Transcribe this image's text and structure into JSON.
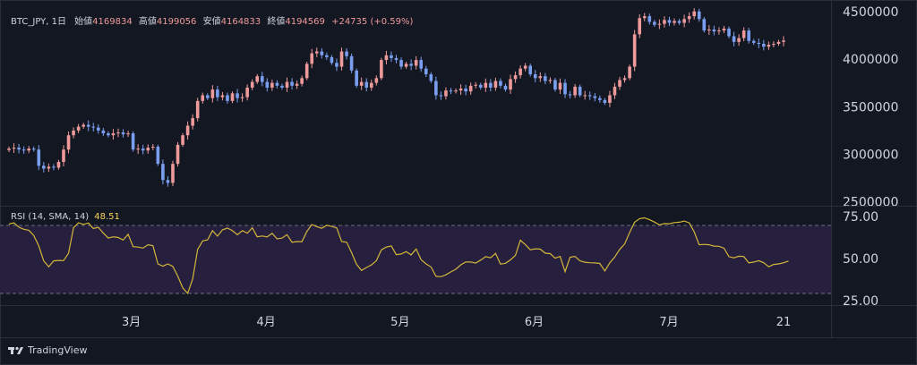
{
  "legend": {
    "symbol": "BTC_JPY, 1日",
    "open_label": "始値",
    "open": "4169834",
    "high_label": "高値",
    "high": "4199056",
    "low_label": "安値",
    "low": "4164833",
    "close_label": "終値",
    "close": "4194569",
    "change": "+24735 (+0.59%)"
  },
  "rsi_legend": {
    "label": "RSI (14, SMA, 14)",
    "value": "48.51"
  },
  "brand": "TradingView",
  "colors": {
    "background": "#131722",
    "up": "#ef9a9a",
    "down": "#7b9ff0",
    "rsi_line": "#d4b63a",
    "rsi_band": "#261f3d"
  },
  "chart_data": [
    {
      "type": "candlestick",
      "title": "BTC_JPY, 1日",
      "y_ticks": [
        "4500000",
        "4000000",
        "3500000",
        "3000000",
        "2500000"
      ],
      "ylim": [
        2460000,
        4620000
      ],
      "x_ticks": [
        "3月",
        "4月",
        "5月",
        "6月",
        "7月",
        "21"
      ],
      "up_color": "#ef9a9a",
      "down_color": "#7b9ff0",
      "closes": [
        3060000,
        3070000,
        3050000,
        3040000,
        3060000,
        3050000,
        2880000,
        2850000,
        2870000,
        2860000,
        2920000,
        3050000,
        3200000,
        3250000,
        3290000,
        3310000,
        3290000,
        3280000,
        3250000,
        3220000,
        3200000,
        3220000,
        3230000,
        3210000,
        3220000,
        3050000,
        3060000,
        3040000,
        3070000,
        3080000,
        2900000,
        2730000,
        2700000,
        2900000,
        3100000,
        3200000,
        3300000,
        3380000,
        3560000,
        3620000,
        3590000,
        3680000,
        3600000,
        3620000,
        3560000,
        3640000,
        3590000,
        3600000,
        3700000,
        3760000,
        3820000,
        3760000,
        3700000,
        3750000,
        3720000,
        3700000,
        3760000,
        3720000,
        3740000,
        3800000,
        3950000,
        4060000,
        4080000,
        4040000,
        4020000,
        3960000,
        3920000,
        4080000,
        4030000,
        3880000,
        3720000,
        3760000,
        3700000,
        3750000,
        3800000,
        3990000,
        4040000,
        4010000,
        3990000,
        3920000,
        3950000,
        3930000,
        3990000,
        3900000,
        3840000,
        3770000,
        3620000,
        3610000,
        3670000,
        3660000,
        3670000,
        3690000,
        3660000,
        3720000,
        3730000,
        3700000,
        3750000,
        3700000,
        3770000,
        3720000,
        3680000,
        3790000,
        3830000,
        3900000,
        3930000,
        3840000,
        3800000,
        3820000,
        3770000,
        3780000,
        3680000,
        3750000,
        3630000,
        3620000,
        3710000,
        3620000,
        3620000,
        3610000,
        3590000,
        3570000,
        3540000,
        3620000,
        3710000,
        3780000,
        3800000,
        3920000,
        4260000,
        4430000,
        4450000,
        4390000,
        4360000,
        4370000,
        4410000,
        4380000,
        4400000,
        4380000,
        4420000,
        4450000,
        4500000,
        4420000,
        4300000,
        4310000,
        4290000,
        4300000,
        4320000,
        4240000,
        4180000,
        4220000,
        4300000,
        4190000,
        4170000,
        4160000,
        4130000,
        4150000,
        4160000,
        4180000,
        4194569
      ]
    },
    {
      "type": "line",
      "title": "RSI (14, SMA, 14)",
      "y_ticks": [
        "75.00",
        "50.00",
        "25.00"
      ],
      "ylim": [
        24,
        78
      ],
      "upper_band": 70,
      "lower_band": 30,
      "latest": 48.51,
      "values": [
        70.5,
        71.3,
        68.6,
        67.4,
        66.8,
        63.7,
        57.5,
        48.6,
        45.1,
        48.6,
        48.9,
        48.8,
        53.1,
        68.3,
        71.3,
        70.3,
        71.1,
        67.8,
        68.6,
        65.1,
        62.2,
        62.9,
        62.5,
        61.0,
        64.4,
        57.1,
        56.8,
        56.2,
        58.2,
        57.6,
        46.8,
        45.4,
        46.8,
        45.3,
        39.6,
        32.5,
        29.3,
        37.9,
        55.4,
        60.5,
        61.1,
        66.6,
        63.3,
        67.1,
        68.1,
        66.6,
        64.1,
        66.6,
        65.1,
        68.3,
        62.9,
        63.4,
        62.8,
        65.0,
        61.7,
        62.2,
        64.2,
        59.7,
        60.1,
        60.0,
        66.1,
        70.2,
        69.0,
        68.0,
        69.8,
        69.1,
        68.2,
        60.1,
        59.7,
        53.5,
        46.6,
        42.9,
        44.7,
        46.2,
        48.7,
        55.2,
        56.8,
        57.5,
        52.3,
        52.7,
        54.1,
        52.2,
        55.7,
        49.3,
        46.8,
        45.0,
        39.4,
        39.2,
        40.3,
        42.1,
        43.6,
        46.3,
        47.9,
        48.0,
        47.3,
        49.1,
        51.1,
        50.5,
        53.1,
        46.7,
        47.2,
        49.2,
        51.9,
        60.9,
        58.2,
        55.2,
        55.8,
        55.6,
        53.2,
        52.9,
        50.2,
        51.2,
        42.2,
        50.8,
        51.3,
        48.6,
        47.8,
        47.5,
        47.4,
        47.1,
        42.6,
        47.4,
        50.9,
        55.4,
        58.7,
        65.5,
        71.6,
        73.7,
        74.2,
        73.1,
        71.7,
        70.0,
        70.8,
        70.7,
        71.4,
        71.6,
        72.3,
        71.2,
        65.9,
        58.2,
        58.4,
        58.2,
        57.4,
        57.3,
        56.1,
        51.1,
        50.4,
        51.4,
        51.2,
        47.4,
        47.9,
        48.7,
        47.5,
        45.1,
        46.5,
        46.8,
        47.5,
        48.5
      ]
    }
  ]
}
